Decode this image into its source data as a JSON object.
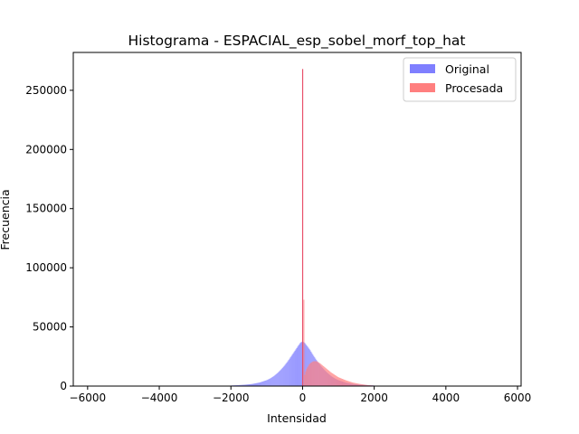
{
  "chart_data": {
    "type": "histogram",
    "title": "Histograma - ESPACIAL_esp_sobel_morf_top_hat",
    "xlabel": "Intensidad",
    "ylabel": "Frecuencia",
    "xlim": [
      -6400,
      6100
    ],
    "ylim": [
      0,
      282000
    ],
    "xticks": [
      -6000,
      -4000,
      -2000,
      0,
      2000,
      4000,
      6000
    ],
    "xtick_labels": [
      "−6000",
      "−4000",
      "−2000",
      "0",
      "2000",
      "4000",
      "6000"
    ],
    "yticks": [
      0,
      50000,
      100000,
      150000,
      200000,
      250000
    ],
    "ytick_labels": [
      "0",
      "50000",
      "100000",
      "150000",
      "200000",
      "250000"
    ],
    "legend_position": "top-right",
    "series": [
      {
        "name": "Original",
        "color": "#7f7fff",
        "bins": [
          {
            "x": -2000,
            "y": 500
          },
          {
            "x": -1800,
            "y": 800
          },
          {
            "x": -1600,
            "y": 1200
          },
          {
            "x": -1400,
            "y": 1800
          },
          {
            "x": -1200,
            "y": 3000
          },
          {
            "x": -1000,
            "y": 5000
          },
          {
            "x": -900,
            "y": 6500
          },
          {
            "x": -800,
            "y": 8500
          },
          {
            "x": -700,
            "y": 11000
          },
          {
            "x": -600,
            "y": 14000
          },
          {
            "x": -500,
            "y": 17500
          },
          {
            "x": -400,
            "y": 21500
          },
          {
            "x": -300,
            "y": 26000
          },
          {
            "x": -200,
            "y": 30500
          },
          {
            "x": -100,
            "y": 35000
          },
          {
            "x": -50,
            "y": 37000
          },
          {
            "x": 0,
            "y": 37500
          },
          {
            "x": 50,
            "y": 37000
          },
          {
            "x": 100,
            "y": 35000
          },
          {
            "x": 200,
            "y": 31000
          },
          {
            "x": 300,
            "y": 26000
          },
          {
            "x": 400,
            "y": 21500
          },
          {
            "x": 500,
            "y": 17500
          },
          {
            "x": 600,
            "y": 14000
          },
          {
            "x": 700,
            "y": 11000
          },
          {
            "x": 800,
            "y": 8500
          },
          {
            "x": 900,
            "y": 6500
          },
          {
            "x": 1000,
            "y": 5000
          },
          {
            "x": 1200,
            "y": 3000
          },
          {
            "x": 1400,
            "y": 1800
          },
          {
            "x": 1600,
            "y": 1200
          },
          {
            "x": 1800,
            "y": 800
          },
          {
            "x": 2000,
            "y": 500
          }
        ]
      },
      {
        "name": "Procesada",
        "color": "#ff7f7f",
        "bins": [
          {
            "x": 0,
            "y": 268000
          },
          {
            "x": 50,
            "y": 8000
          },
          {
            "x": 100,
            "y": 14000
          },
          {
            "x": 200,
            "y": 19000
          },
          {
            "x": 300,
            "y": 21000
          },
          {
            "x": 400,
            "y": 21000
          },
          {
            "x": 500,
            "y": 19000
          },
          {
            "x": 600,
            "y": 16500
          },
          {
            "x": 700,
            "y": 14000
          },
          {
            "x": 800,
            "y": 11500
          },
          {
            "x": 900,
            "y": 9500
          },
          {
            "x": 1000,
            "y": 7500
          },
          {
            "x": 1200,
            "y": 5000
          },
          {
            "x": 1400,
            "y": 3000
          },
          {
            "x": 1600,
            "y": 1800
          },
          {
            "x": 1800,
            "y": 900
          },
          {
            "x": 2000,
            "y": 400
          }
        ]
      }
    ]
  }
}
